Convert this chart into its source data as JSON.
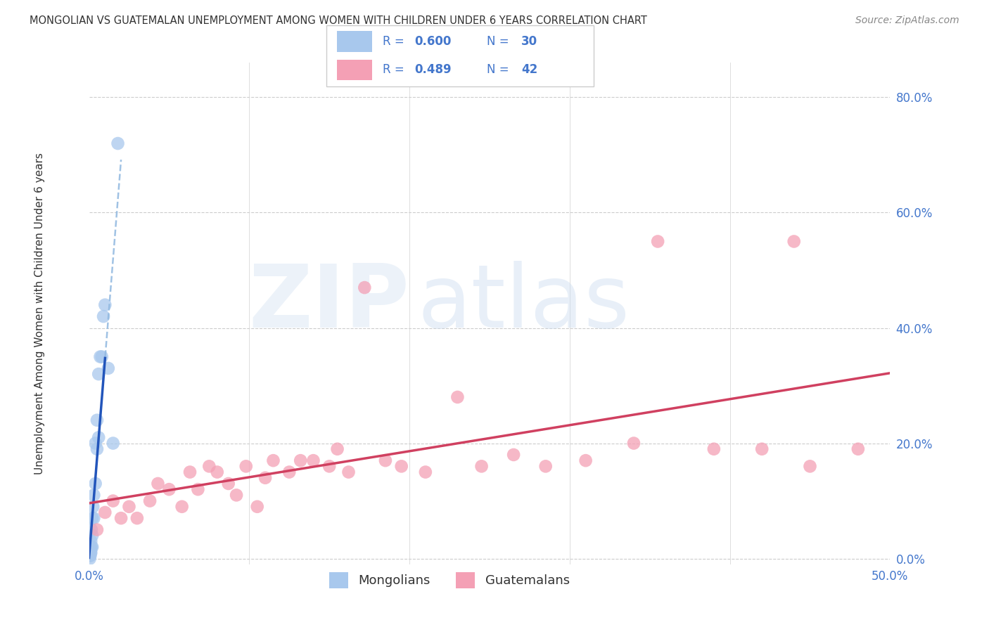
{
  "title": "MONGOLIAN VS GUATEMALAN UNEMPLOYMENT AMONG WOMEN WITH CHILDREN UNDER 6 YEARS CORRELATION CHART",
  "source": "Source: ZipAtlas.com",
  "ylabel": "Unemployment Among Women with Children Under 6 years",
  "xlim": [
    0.0,
    0.5
  ],
  "ylim": [
    -0.01,
    0.86
  ],
  "yticks": [
    0.0,
    0.2,
    0.4,
    0.6,
    0.8
  ],
  "ytick_labels": [
    "0.0%",
    "20.0%",
    "40.0%",
    "60.0%",
    "80.0%"
  ],
  "xtick_vals": [
    0.0,
    0.1,
    0.2,
    0.3,
    0.4,
    0.5
  ],
  "xtick_labels": [
    "0.0%",
    "",
    "",
    "",
    "",
    "50.0%"
  ],
  "mongolian_color": "#A8C8ED",
  "guatemalan_color": "#F4A0B5",
  "mongolian_line_color": "#2255BB",
  "guatemalan_line_color": "#D04060",
  "mongolian_dashed_color": "#90B8E0",
  "tick_color": "#4477CC",
  "R_mon": "0.600",
  "N_mon": "30",
  "R_gua": "0.489",
  "N_gua": "42",
  "mongolian_x": [
    0.0005,
    0.0005,
    0.0005,
    0.0008,
    0.001,
    0.001,
    0.001,
    0.0012,
    0.0012,
    0.0015,
    0.0015,
    0.002,
    0.002,
    0.002,
    0.0025,
    0.003,
    0.003,
    0.004,
    0.004,
    0.005,
    0.005,
    0.006,
    0.006,
    0.007,
    0.008,
    0.009,
    0.01,
    0.012,
    0.015,
    0.018
  ],
  "mongolian_y": [
    0.0,
    0.005,
    0.01,
    0.005,
    0.01,
    0.015,
    0.02,
    0.01,
    0.03,
    0.02,
    0.05,
    0.02,
    0.04,
    0.07,
    0.09,
    0.07,
    0.11,
    0.13,
    0.2,
    0.19,
    0.24,
    0.21,
    0.32,
    0.35,
    0.35,
    0.42,
    0.44,
    0.33,
    0.2,
    0.72
  ],
  "guatemalan_x": [
    0.005,
    0.01,
    0.015,
    0.02,
    0.025,
    0.03,
    0.038,
    0.043,
    0.05,
    0.058,
    0.063,
    0.068,
    0.075,
    0.08,
    0.087,
    0.092,
    0.098,
    0.105,
    0.11,
    0.115,
    0.125,
    0.132,
    0.14,
    0.15,
    0.155,
    0.162,
    0.172,
    0.185,
    0.195,
    0.21,
    0.23,
    0.245,
    0.265,
    0.285,
    0.31,
    0.34,
    0.355,
    0.39,
    0.42,
    0.44,
    0.45,
    0.48
  ],
  "guatemalan_y": [
    0.05,
    0.08,
    0.1,
    0.07,
    0.09,
    0.07,
    0.1,
    0.13,
    0.12,
    0.09,
    0.15,
    0.12,
    0.16,
    0.15,
    0.13,
    0.11,
    0.16,
    0.09,
    0.14,
    0.17,
    0.15,
    0.17,
    0.17,
    0.16,
    0.19,
    0.15,
    0.47,
    0.17,
    0.16,
    0.15,
    0.28,
    0.16,
    0.18,
    0.16,
    0.17,
    0.2,
    0.55,
    0.19,
    0.19,
    0.55,
    0.16,
    0.19
  ]
}
